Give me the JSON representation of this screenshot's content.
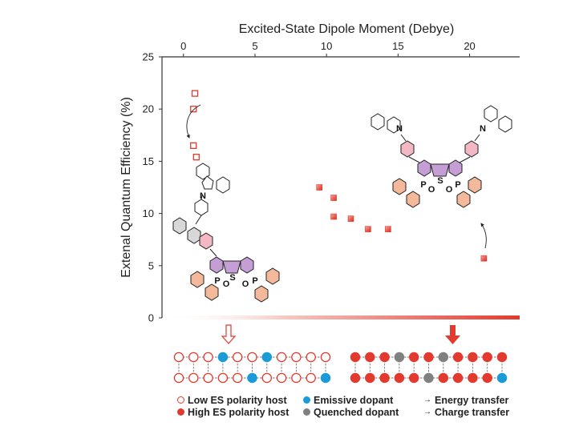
{
  "chart_data": {
    "type": "scatter",
    "title": "Excited-State Dipole Moment (Debye)",
    "xlabel": "Excited-State Dipole Moment (Debye)",
    "ylabel": "Extenal Quantum Efficiency (%)",
    "xlim": [
      -1.5,
      23.5
    ],
    "ylim": [
      0,
      25
    ],
    "xticks": [
      "0",
      "5",
      "10",
      "15",
      "20"
    ],
    "xtick_values": [
      0,
      5,
      10,
      15,
      20
    ],
    "yticks": [
      "0",
      "5",
      "10",
      "15",
      "20",
      "25"
    ],
    "ytick_values": [
      0,
      5,
      10,
      15,
      20,
      25
    ],
    "series": [
      {
        "name": "Low ES polarity host",
        "style": "open-square",
        "color": "#e23a2f",
        "points": [
          {
            "x": 0.8,
            "y": 21.5
          },
          {
            "x": 0.7,
            "y": 20.0
          },
          {
            "x": 0.7,
            "y": 16.5
          },
          {
            "x": 0.9,
            "y": 15.4
          }
        ]
      },
      {
        "name": "High ES polarity host",
        "style": "filled-square",
        "color": "#e23a2f",
        "points": [
          {
            "x": 9.5,
            "y": 12.5
          },
          {
            "x": 10.5,
            "y": 11.5
          },
          {
            "x": 10.5,
            "y": 9.7
          },
          {
            "x": 11.7,
            "y": 9.5
          },
          {
            "x": 12.9,
            "y": 8.5
          },
          {
            "x": 14.3,
            "y": 8.5
          },
          {
            "x": 21.0,
            "y": 5.7
          }
        ]
      }
    ]
  },
  "molecule_labels": {
    "left": {
      "n": "N",
      "s": "S",
      "p1": "P",
      "o1": "O",
      "p2": "P",
      "o2": "O"
    },
    "right": {
      "n1": "N",
      "n2": "N",
      "s": "S",
      "p1": "P",
      "o1": "O",
      "p2": "P",
      "o2": "O"
    }
  },
  "legend": {
    "low_host": "Low ES polarity host",
    "high_host": "High ES polarity host",
    "emissive": "Emissive dopant",
    "quenched": "Quenched dopant",
    "energy": "Energy transfer",
    "charge": "Charge transfer"
  },
  "colors": {
    "red": "#e23a2f",
    "red_light": "#f2a097",
    "blue": "#1a9bd7",
    "grey": "#808080",
    "purple": "#c59ed6",
    "pink": "#f4b8c4",
    "orange": "#f4b89a"
  }
}
